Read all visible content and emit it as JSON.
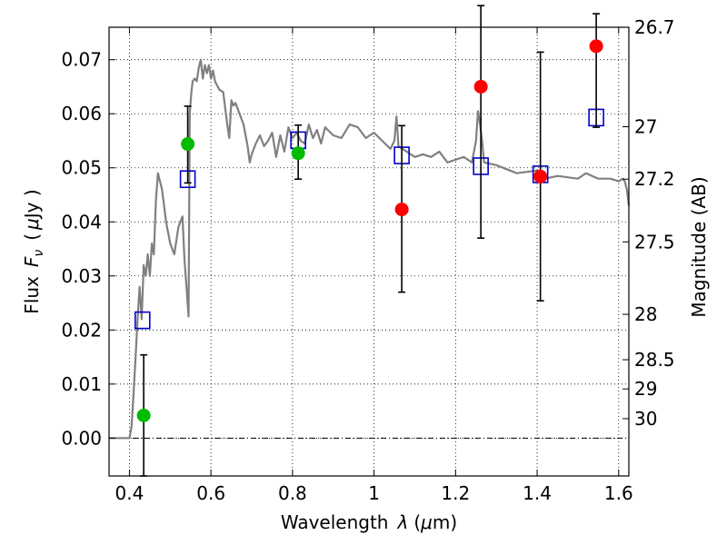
{
  "chart_data": {
    "type": "scatter",
    "xlabel_text": "Wavelength",
    "xlabel_symbol": "λ",
    "xlabel_unit_pre": "(",
    "xlabel_mu": "μ",
    "xlabel_unit_post": "m)",
    "ylabel_text": "Flux",
    "ylabel_symbol": "F",
    "ylabel_sub": "ν",
    "ylabel_unit_pre": "(",
    "ylabel_mu": "μ",
    "ylabel_unit_post": "Jy )",
    "y2label": "Magnitude (AB)",
    "xlim": [
      0.35,
      1.625
    ],
    "ylim": [
      -0.007,
      0.076
    ],
    "grid": true,
    "xticks": [
      0.4,
      0.6,
      0.8,
      1.0,
      1.2,
      1.4,
      1.6
    ],
    "xtick_labels": [
      "0.4",
      "0.6",
      "0.8",
      "1",
      "1.2",
      "1.4",
      "1.6"
    ],
    "yticks": [
      0.0,
      0.01,
      0.02,
      0.03,
      0.04,
      0.05,
      0.06,
      0.07
    ],
    "ytick_labels": [
      "0.00",
      "0.01",
      "0.02",
      "0.03",
      "0.04",
      "0.05",
      "0.06",
      "0.07"
    ],
    "y2_ticks": [
      {
        "label": "26.7",
        "flux": 0.076
      },
      {
        "label": "27",
        "flux": 0.0576
      },
      {
        "label": "27.2",
        "flux": 0.0479
      },
      {
        "label": "27.5",
        "flux": 0.0363
      },
      {
        "label": "28",
        "flux": 0.0229
      },
      {
        "label": "28.5",
        "flux": 0.0145
      },
      {
        "label": "29",
        "flux": 0.0091
      },
      {
        "label": "30",
        "flux": 0.0036
      }
    ],
    "series": [
      {
        "type": "line",
        "color": "#808080",
        "x": [
          0.35,
          0.39,
          0.395,
          0.4,
          0.405,
          0.41,
          0.415,
          0.42,
          0.425,
          0.43,
          0.435,
          0.44,
          0.445,
          0.45,
          0.455,
          0.46,
          0.465,
          0.47,
          0.48,
          0.49,
          0.5,
          0.51,
          0.52,
          0.53,
          0.535,
          0.54,
          0.545,
          0.548,
          0.552,
          0.555,
          0.56,
          0.565,
          0.57,
          0.575,
          0.58,
          0.585,
          0.59,
          0.595,
          0.6,
          0.605,
          0.61,
          0.62,
          0.63,
          0.64,
          0.645,
          0.65,
          0.655,
          0.66,
          0.67,
          0.68,
          0.69,
          0.695,
          0.7,
          0.71,
          0.72,
          0.73,
          0.74,
          0.75,
          0.76,
          0.77,
          0.78,
          0.79,
          0.8,
          0.81,
          0.82,
          0.83,
          0.84,
          0.85,
          0.86,
          0.87,
          0.88,
          0.9,
          0.92,
          0.94,
          0.96,
          0.98,
          1.0,
          1.02,
          1.04,
          1.05,
          1.055,
          1.06,
          1.08,
          1.1,
          1.12,
          1.14,
          1.16,
          1.18,
          1.2,
          1.22,
          1.24,
          1.25,
          1.255,
          1.26,
          1.265,
          1.27,
          1.3,
          1.35,
          1.4,
          1.42,
          1.45,
          1.5,
          1.52,
          1.55,
          1.58,
          1.6,
          1.61,
          1.615,
          1.62,
          1.625
        ],
        "y": [
          0.0,
          0.0,
          0.0,
          0.0,
          0.002,
          0.008,
          0.015,
          0.022,
          0.028,
          0.022,
          0.032,
          0.03,
          0.034,
          0.03,
          0.036,
          0.034,
          0.044,
          0.049,
          0.046,
          0.04,
          0.036,
          0.034,
          0.039,
          0.041,
          0.033,
          0.028,
          0.0225,
          0.06,
          0.064,
          0.066,
          0.0665,
          0.066,
          0.0685,
          0.07,
          0.0665,
          0.069,
          0.0675,
          0.069,
          0.0665,
          0.068,
          0.066,
          0.0645,
          0.064,
          0.058,
          0.0555,
          0.0625,
          0.0615,
          0.062,
          0.06,
          0.058,
          0.054,
          0.051,
          0.0525,
          0.0545,
          0.056,
          0.054,
          0.055,
          0.0565,
          0.052,
          0.056,
          0.053,
          0.0575,
          0.0555,
          0.0565,
          0.055,
          0.0545,
          0.058,
          0.0555,
          0.057,
          0.0545,
          0.0575,
          0.056,
          0.0555,
          0.058,
          0.0575,
          0.0555,
          0.0565,
          0.055,
          0.0535,
          0.055,
          0.0595,
          0.054,
          0.053,
          0.052,
          0.0525,
          0.052,
          0.053,
          0.051,
          0.0515,
          0.052,
          0.051,
          0.055,
          0.0605,
          0.058,
          0.055,
          0.051,
          0.0505,
          0.049,
          0.0495,
          0.048,
          0.0485,
          0.048,
          0.049,
          0.048,
          0.048,
          0.0475,
          0.048,
          0.0475,
          0.046,
          0.043
        ]
      },
      {
        "type": "points",
        "marker": "square",
        "color": "#0000cc",
        "x": [
          0.432,
          0.543,
          0.814,
          1.068,
          1.262,
          1.408,
          1.545
        ],
        "y": [
          0.0218,
          0.0479,
          0.0551,
          0.0523,
          0.0503,
          0.0488,
          0.0593
        ]
      },
      {
        "type": "points",
        "marker": "circle",
        "color": "#00bb00",
        "x": [
          0.435,
          0.543,
          0.814
        ],
        "y": [
          0.0042,
          0.0544,
          0.0527
        ],
        "err_low": [
          0.0112,
          0.0072,
          0.0048
        ],
        "err_high": [
          0.0112,
          0.007,
          0.0052
        ]
      },
      {
        "type": "points",
        "marker": "circle",
        "color": "#ff0000",
        "x": [
          1.068,
          1.262,
          1.408,
          1.545
        ],
        "y": [
          0.0423,
          0.065,
          0.0484,
          0.0725
        ],
        "err_low": [
          0.0153,
          0.028,
          0.023,
          0.015
        ],
        "err_high": [
          0.0155,
          0.015,
          0.023,
          0.006
        ]
      }
    ]
  }
}
